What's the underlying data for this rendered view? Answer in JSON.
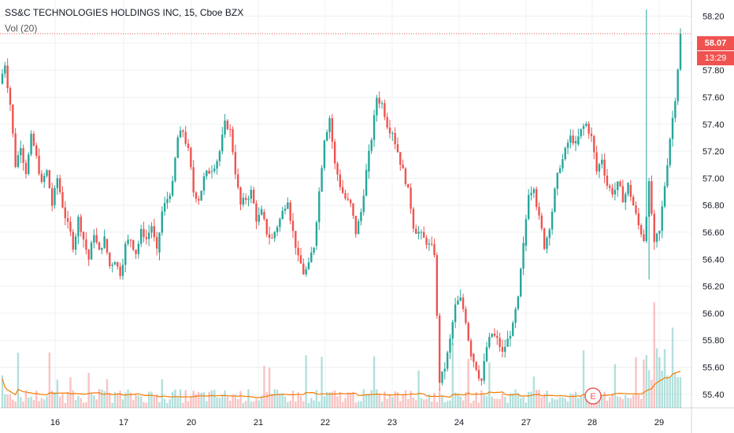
{
  "chart_data": {
    "type": "candlestick",
    "title": "SS&C TECHNOLOGIES HOLDINGS INC, 15, Cboe BZX",
    "indicator_label": "Vol (20)",
    "y_ticks": [
      "58.20",
      "58.00",
      "57.80",
      "57.60",
      "57.40",
      "57.20",
      "57.00",
      "56.80",
      "56.60",
      "56.40",
      "56.20",
      "56.00",
      "55.80",
      "55.60",
      "55.40"
    ],
    "ylim": [
      55.3,
      58.32
    ],
    "x_ticks": [
      "16",
      "17",
      "20",
      "21",
      "22",
      "23",
      "24",
      "27",
      "28",
      "29"
    ],
    "last_price": "58.07",
    "countdown": "13:29",
    "earnings_marker": "E",
    "grid": true,
    "colors": {
      "up": "#26a69a",
      "down": "#ef5350",
      "volume_ma": "#f57c00",
      "price_line": "#ef5350"
    },
    "day_segments": [
      {
        "day": "15",
        "start": 57.7,
        "path": [
          57.85,
          57.55,
          57.1,
          57.25,
          57.05,
          57.3,
          57.15,
          56.95,
          57.05,
          56.8
        ]
      },
      {
        "day": "16",
        "start": 56.8,
        "path": [
          57.0,
          56.8,
          56.65,
          56.5,
          56.7,
          56.55,
          56.4,
          56.6,
          56.45,
          56.55
        ]
      },
      {
        "day": "17",
        "start": 56.55,
        "path": [
          56.35,
          56.4,
          56.3,
          56.5,
          56.55,
          56.45,
          56.6,
          56.55,
          56.65,
          56.45
        ]
      },
      {
        "day": "20",
        "start": 56.45,
        "path": [
          56.75,
          56.85,
          56.95,
          57.3,
          57.35,
          57.2,
          56.9,
          56.85,
          57.0,
          57.05
        ]
      },
      {
        "day": "20b",
        "start": 57.05,
        "path": [
          57.1,
          57.2,
          57.4,
          57.35,
          57.05,
          56.8,
          56.85,
          56.9,
          56.7,
          56.75
        ]
      },
      {
        "day": "21",
        "start": 56.75,
        "path": [
          56.6,
          56.55,
          56.65,
          56.75,
          56.85,
          56.6,
          56.4,
          56.3,
          56.35,
          56.5
        ]
      },
      {
        "day": "22",
        "start": 56.5,
        "path": [
          56.9,
          57.3,
          57.45,
          57.1,
          56.95,
          56.85,
          56.8,
          56.6,
          56.75,
          57.05
        ]
      },
      {
        "day": "23",
        "start": 57.05,
        "path": [
          57.3,
          57.6,
          57.55,
          57.4,
          57.35,
          57.2,
          57.05,
          56.9,
          56.65,
          56.6
        ]
      },
      {
        "day": "24",
        "start": 56.6,
        "path": [
          56.55,
          56.5,
          56.45,
          55.5,
          55.6,
          55.8,
          56.05,
          56.1,
          55.95,
          55.7
        ]
      },
      {
        "day": "24b",
        "start": 55.7,
        "path": [
          55.6,
          55.5,
          55.75,
          55.85,
          55.8,
          55.7,
          55.8,
          55.9,
          56.1,
          56.5
        ]
      },
      {
        "day": "27",
        "start": 56.5,
        "path": [
          56.9,
          56.95,
          56.7,
          56.5,
          56.65,
          56.9,
          57.1,
          57.2,
          57.3,
          57.25
        ]
      },
      {
        "day": "28",
        "start": 57.25,
        "path": [
          57.35,
          57.4,
          57.3,
          57.05,
          57.15,
          56.95,
          56.9,
          56.95,
          56.85,
          56.95
        ]
      },
      {
        "day": "28b",
        "start": 56.95,
        "path": [
          56.8,
          56.65,
          56.55,
          56.95,
          56.5,
          56.6,
          56.95,
          57.3,
          57.6,
          58.07
        ]
      }
    ]
  }
}
